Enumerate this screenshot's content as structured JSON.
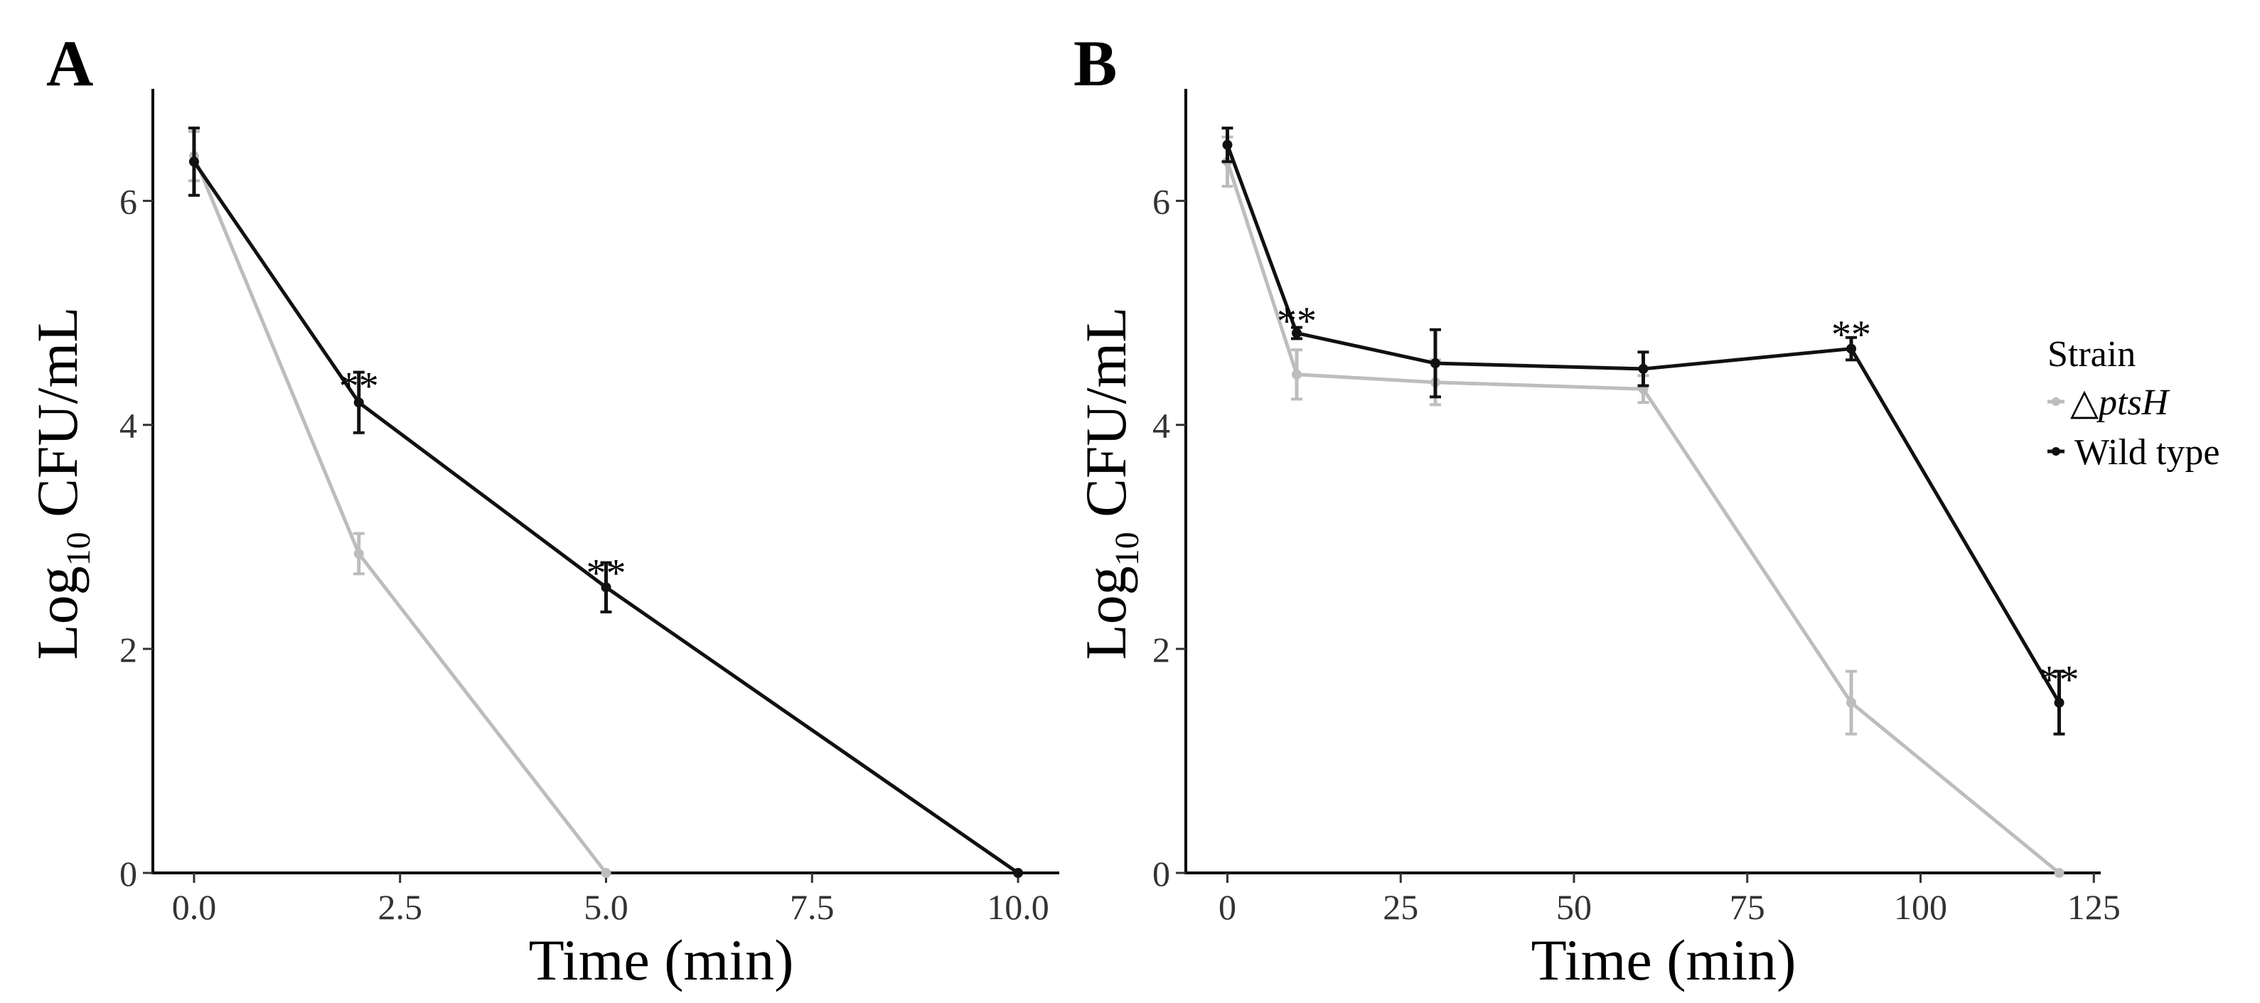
{
  "legend": {
    "title": "Strain",
    "entries": [
      {
        "key": "dpts",
        "symbol": "△",
        "label": "ptsH",
        "color": "#bdbdbd"
      },
      {
        "key": "wt",
        "symbol": "",
        "label": "Wild type",
        "color": "#111111"
      }
    ]
  },
  "chart_data": [
    {
      "type": "line",
      "panel_label": "A",
      "title": "",
      "xlabel": "Time (min)",
      "ylabel": {
        "prefix": "Log",
        "subscript": "10",
        "suffix": " CFU/mL"
      },
      "xlim": [
        -0.5,
        10.5
      ],
      "ylim": [
        0,
        7
      ],
      "xticks": [
        0,
        2.5,
        5,
        7.5,
        10
      ],
      "xtick_labels": [
        "0.0",
        "2.5",
        "5.0",
        "7.5",
        "10.0"
      ],
      "yticks": [
        0,
        2,
        4,
        6
      ],
      "ytick_labels": [
        "0",
        "2",
        "4",
        "6"
      ],
      "series": [
        {
          "key": "dpts",
          "name": "△ptsH",
          "color": "#bdbdbd",
          "x": [
            0,
            2,
            5
          ],
          "y": [
            6.4,
            2.85,
            0
          ],
          "err": [
            0.22,
            0.18,
            0
          ]
        },
        {
          "key": "wt",
          "name": "Wild type",
          "color": "#111111",
          "x": [
            0,
            2,
            5,
            10
          ],
          "y": [
            6.35,
            4.2,
            2.55,
            0
          ],
          "err": [
            0.3,
            0.27,
            0.22,
            0
          ]
        }
      ],
      "annotations": [
        {
          "x": 2,
          "y": 4.42,
          "text": "**"
        },
        {
          "x": 5,
          "y": 2.75,
          "text": "**"
        }
      ]
    },
    {
      "type": "line",
      "panel_label": "B",
      "title": "",
      "xlabel": "Time (min)",
      "ylabel": {
        "prefix": "Log",
        "subscript": "10",
        "suffix": " CFU/mL"
      },
      "xlim": [
        -6,
        126
      ],
      "ylim": [
        0,
        7
      ],
      "xticks": [
        0,
        25,
        50,
        75,
        100,
        125
      ],
      "xtick_labels": [
        "0",
        "25",
        "50",
        "75",
        "100",
        "125"
      ],
      "yticks": [
        0,
        2,
        4,
        6
      ],
      "ytick_labels": [
        "0",
        "2",
        "4",
        "6"
      ],
      "series": [
        {
          "key": "dpts",
          "name": "△ptsH",
          "color": "#bdbdbd",
          "x": [
            0,
            10,
            30,
            60,
            90,
            120
          ],
          "y": [
            6.35,
            4.45,
            4.38,
            4.32,
            1.52,
            0
          ],
          "err": [
            0.22,
            0.22,
            0.2,
            0.12,
            0.28,
            0
          ]
        },
        {
          "key": "wt",
          "name": "Wild type",
          "color": "#111111",
          "x": [
            0,
            10,
            30,
            60,
            90,
            120
          ],
          "y": [
            6.5,
            4.82,
            4.55,
            4.5,
            4.68,
            1.52
          ],
          "err": [
            0.15,
            0.05,
            0.3,
            0.15,
            0.1,
            0.28
          ]
        }
      ],
      "annotations": [
        {
          "x": 10,
          "y": 5.0,
          "text": "**"
        },
        {
          "x": 90,
          "y": 4.88,
          "text": "**"
        },
        {
          "x": 120,
          "y": 1.8,
          "text": "**"
        }
      ]
    }
  ]
}
